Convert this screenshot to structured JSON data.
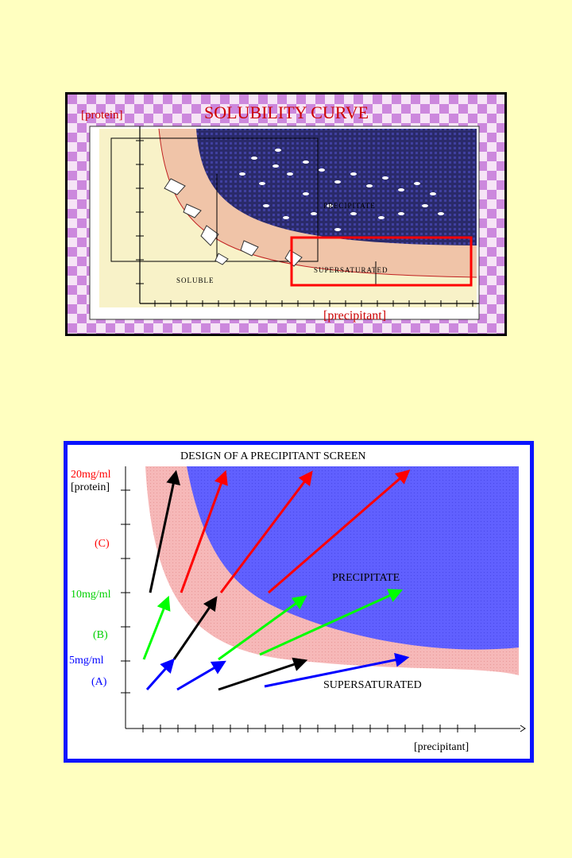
{
  "solubility": {
    "title": "SOLUBILITY CURVE",
    "ylabel": "[protein]",
    "xlabel": "[precipitant]",
    "region_precipitate": "PRECIPITATE",
    "region_supersaturated": "SUPERSATURATED",
    "region_soluble": "SOLUBLE"
  },
  "screen": {
    "title": "DESIGN OF A PRECIPITANT SCREEN",
    "ylabel": "[protein]",
    "xlabel": "[precipitant]",
    "level_high": "20mg/ml",
    "level_mid": "10mg/ml",
    "level_low": "5mg/ml",
    "band_c": "(C)",
    "band_b": "(B)",
    "band_a": "(A)",
    "region_precipitate": "PRECIPITATE",
    "region_supersaturated": "SUPERSATURATED"
  },
  "colors": {
    "page_bg": "#ffffc0",
    "precipitate_blue": "#5a5aff",
    "supersaturated_pink": "#f4b4b4",
    "high_red": "#ff0000",
    "mid_green": "#00ff00",
    "low_blue": "#0000ff",
    "arrow_black": "#000000"
  }
}
